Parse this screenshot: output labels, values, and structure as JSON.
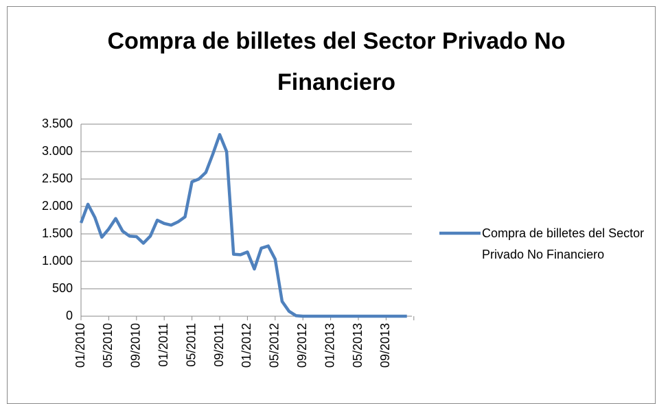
{
  "chart_data": {
    "type": "line",
    "title": "Compra de billetes del Sector Privado No Financiero",
    "categories": [
      "01/2010",
      null,
      null,
      null,
      "05/2010",
      null,
      null,
      null,
      "09/2010",
      null,
      null,
      null,
      "01/2011",
      null,
      null,
      null,
      "05/2011",
      null,
      null,
      null,
      "09/2011",
      null,
      null,
      null,
      "01/2012",
      null,
      null,
      null,
      "05/2012",
      null,
      null,
      null,
      "09/2012",
      null,
      null,
      null,
      "01/2013",
      null,
      null,
      null,
      "05/2013",
      null,
      null,
      null,
      "09/2013",
      null,
      null,
      null
    ],
    "series": [
      {
        "name": "Compra de billetes del Sector Privado No Financiero",
        "color": "#4f81bd",
        "values": [
          1700,
          2040,
          1800,
          1440,
          1590,
          1780,
          1550,
          1460,
          1450,
          1330,
          1460,
          1750,
          1690,
          1660,
          1720,
          1810,
          2450,
          2500,
          2620,
          2950,
          3310,
          3000,
          1130,
          1120,
          1170,
          860,
          1240,
          1280,
          1040,
          270,
          90,
          10,
          0,
          0,
          0,
          0,
          0,
          0,
          0,
          0,
          0,
          0,
          0,
          0,
          0,
          0,
          0,
          0
        ]
      }
    ],
    "ylim": [
      0,
      3500
    ],
    "yticks": [
      {
        "value": 0,
        "label": "0"
      },
      {
        "value": 500,
        "label": "500"
      },
      {
        "value": 1000,
        "label": "1.000"
      },
      {
        "value": 1500,
        "label": "1.500"
      },
      {
        "value": 2000,
        "label": "2.000"
      },
      {
        "value": 2500,
        "label": "2.500"
      },
      {
        "value": 3000,
        "label": "3.000"
      },
      {
        "value": 3500,
        "label": "3.500"
      }
    ],
    "grid": true,
    "legend": "right"
  }
}
